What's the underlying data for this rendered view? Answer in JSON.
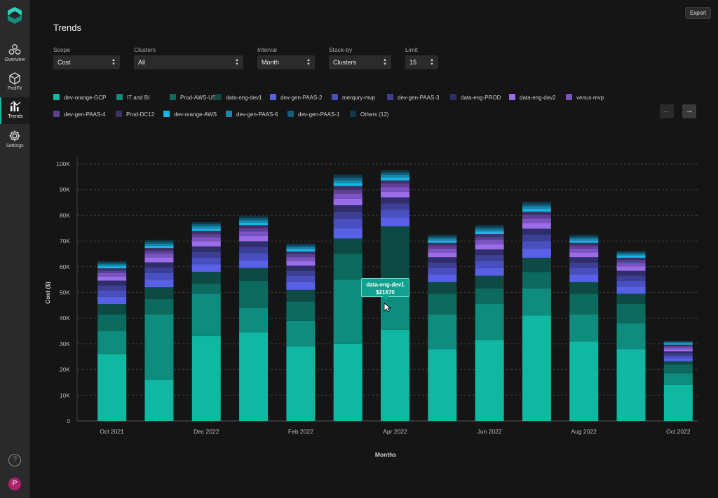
{
  "app": {
    "nav": [
      {
        "label": "Overview",
        "icon": "hexagons-icon"
      },
      {
        "label": "PodFit",
        "icon": "cube-icon"
      },
      {
        "label": "Trends",
        "icon": "bar-chart-icon"
      },
      {
        "label": "Settings",
        "icon": "gear-icon"
      }
    ],
    "help_glyph": "?",
    "avatar_initial": "P",
    "accent": "#1fb5a5"
  },
  "header": {
    "title": "Trends",
    "export_label": "Export"
  },
  "filters": {
    "scope": {
      "label": "Scope",
      "value": "Cost"
    },
    "clusters": {
      "label": "Clusters",
      "value": "All"
    },
    "interval": {
      "label": "Interval",
      "value": "Month"
    },
    "stackby": {
      "label": "Stack-by",
      "value": "Clusters"
    },
    "limit": {
      "label": "Limit",
      "value": "15"
    }
  },
  "legend": [
    {
      "name": "dev-orange-GCP",
      "color": "#10b8a2"
    },
    {
      "name": "IT and BI",
      "color": "#0e8c7d"
    },
    {
      "name": "Prod-AWS-US",
      "color": "#0c6a5e"
    },
    {
      "name": "data-eng-dev1",
      "color": "#0d4a44"
    },
    {
      "name": "dev-gen-PAAS-2",
      "color": "#5860e6"
    },
    {
      "name": "merqury-mvp",
      "color": "#4a4fc0"
    },
    {
      "name": "dev-gen-PAAS-3",
      "color": "#3c3f93"
    },
    {
      "name": "data-eng-PROD",
      "color": "#2d2e6a"
    },
    {
      "name": "data-eng-dev2",
      "color": "#9b6ce8"
    },
    {
      "name": "venus-mvp",
      "color": "#7b54c4"
    },
    {
      "name": "dev-gen-PAAS-4",
      "color": "#5e3f96"
    },
    {
      "name": "Prod-DC12",
      "color": "#40306a"
    },
    {
      "name": "dev-orange-AWS",
      "color": "#18b6e0"
    },
    {
      "name": "dev-gen-PAAS-6",
      "color": "#1589ad"
    },
    {
      "name": "dev-gen-PAAS-1",
      "color": "#115f7a"
    },
    {
      "name": "Others (12)",
      "color": "#0f3a4b"
    }
  ],
  "pager": {
    "prev": "←",
    "next": "→"
  },
  "tooltip": {
    "title": "data-eng-dev1",
    "value": "$21670"
  },
  "chart_data": {
    "type": "bar",
    "stacked": true,
    "xlabel": "Months",
    "ylabel": "Cost ($)",
    "ylim": [
      0,
      100000
    ],
    "yticks": [
      "0",
      "10K",
      "20K",
      "30K",
      "40K",
      "50K",
      "60K",
      "70K",
      "80K",
      "90K",
      "100K"
    ],
    "grid": true,
    "legend_position": "top",
    "categories": [
      "Oct 2021",
      "Nov 2021",
      "Dec 2022",
      "Jan 2022",
      "Feb 2022",
      "Mar 2022",
      "Apr 2022",
      "May 2022",
      "Jun 2022",
      "Jul 2022",
      "Aug 2022",
      "Sep 2022",
      "Oct 2022"
    ],
    "tick_labels": [
      "Oct 2021",
      "",
      "Dec 2022",
      "",
      "Feb 2022",
      "",
      "Apr 2022",
      "",
      "Jun 2022",
      "",
      "Aug 2022",
      "",
      "Oct 2022"
    ],
    "series": [
      {
        "name": "dev-orange-GCP",
        "values": [
          26000,
          16000,
          33000,
          34500,
          29000,
          30000,
          35500,
          28000,
          31500,
          41000,
          31000,
          28000,
          14000
        ]
      },
      {
        "name": "IT and BI",
        "values": [
          9000,
          25500,
          16500,
          9500,
          10000,
          25000,
          13500,
          13500,
          14000,
          10500,
          10500,
          10000,
          4500
        ]
      },
      {
        "name": "Prod-AWS-US",
        "values": [
          6500,
          6000,
          4000,
          10500,
          7500,
          10000,
          5000,
          8000,
          6000,
          6500,
          8000,
          7500,
          3500
        ]
      },
      {
        "name": "data-eng-dev1",
        "values": [
          4000,
          4500,
          4500,
          5000,
          4500,
          6000,
          21670,
          4500,
          5000,
          5500,
          4500,
          4000,
          1200
        ]
      },
      {
        "name": "dev-gen-PAAS-2",
        "values": [
          2800,
          3000,
          3000,
          3000,
          3000,
          4000,
          3500,
          3000,
          3000,
          3500,
          3000,
          2800,
          1200
        ]
      },
      {
        "name": "merqury-mvp",
        "values": [
          2500,
          2500,
          2500,
          2800,
          2500,
          3500,
          3000,
          2500,
          2800,
          3000,
          2500,
          2300,
          1000
        ]
      },
      {
        "name": "dev-gen-PAAS-3",
        "values": [
          2000,
          2200,
          2300,
          2400,
          2000,
          2800,
          2500,
          2200,
          2300,
          2500,
          2200,
          2000,
          900
        ]
      },
      {
        "name": "data-eng-PROD",
        "values": [
          1800,
          2000,
          2100,
          2200,
          1900,
          2600,
          2300,
          2000,
          2100,
          2300,
          2000,
          1800,
          800
        ]
      },
      {
        "name": "data-eng-dev2",
        "values": [
          1600,
          1900,
          2000,
          2100,
          1800,
          2500,
          2200,
          1900,
          2000,
          2200,
          1900,
          1700,
          800
        ]
      },
      {
        "name": "venus-mvp",
        "values": [
          1300,
          1500,
          1600,
          1700,
          1500,
          2000,
          1800,
          1500,
          1600,
          1800,
          1500,
          1400,
          700
        ]
      },
      {
        "name": "dev-gen-PAAS-4",
        "values": [
          1000,
          1200,
          1300,
          1400,
          1200,
          1600,
          1400,
          1200,
          1300,
          1400,
          1200,
          1100,
          600
        ]
      },
      {
        "name": "Prod-DC12",
        "values": [
          900,
          1000,
          1100,
          1100,
          1000,
          1400,
          1200,
          1000,
          1100,
          1200,
          1000,
          900,
          500
        ]
      },
      {
        "name": "dev-orange-AWS",
        "values": [
          800,
          900,
          1000,
          1000,
          900,
          1200,
          1100,
          900,
          1000,
          1100,
          900,
          800,
          400
        ]
      },
      {
        "name": "dev-gen-PAAS-6",
        "values": [
          700,
          800,
          900,
          900,
          800,
          1100,
          1000,
          800,
          900,
          1000,
          800,
          700,
          400
        ]
      },
      {
        "name": "dev-gen-PAAS-1",
        "values": [
          600,
          700,
          800,
          800,
          700,
          1000,
          900,
          700,
          800,
          900,
          700,
          600,
          300
        ]
      },
      {
        "name": "Others (12)",
        "values": [
          600,
          700,
          800,
          800,
          700,
          1100,
          900,
          700,
          800,
          900,
          700,
          600,
          300
        ]
      }
    ]
  }
}
